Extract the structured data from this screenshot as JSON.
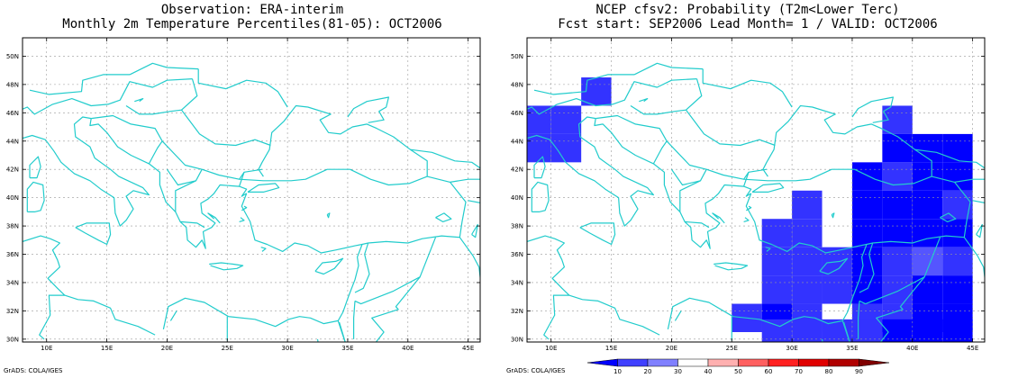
{
  "left_panel": {
    "title_line1": "Observation: ERA-interim",
    "title_line2": "Monthly 2m Temperature Percentiles(81-05): OCT2006"
  },
  "right_panel": {
    "title_line1": "NCEP cfsv2: Probability (T2m<Lower Terc)",
    "title_line2": "Fcst start: SEP2006  Lead Month= 1 / VALID: OCT2006"
  },
  "credit": "GrADS: COLA/IGES",
  "axes": {
    "lat_labels": [
      "30N",
      "32N",
      "34N",
      "36N",
      "38N",
      "40N",
      "42N",
      "44N",
      "46N",
      "48N",
      "50N"
    ],
    "lat_values": [
      30,
      32,
      34,
      36,
      38,
      40,
      42,
      44,
      46,
      48,
      50
    ],
    "lon_labels": [
      "10E",
      "15E",
      "20E",
      "25E",
      "30E",
      "35E",
      "40E",
      "45E"
    ],
    "lon_values": [
      10,
      15,
      20,
      25,
      30,
      35,
      40,
      45
    ],
    "lon_range": [
      8,
      46
    ],
    "lat_range": [
      29.8,
      51.3
    ]
  },
  "colorbar": {
    "labels": [
      "10",
      "20",
      "30",
      "40",
      "50",
      "60",
      "70",
      "80",
      "90"
    ],
    "colors": [
      "#0000ff",
      "#4040ff",
      "#8080ff",
      "#ffffff",
      "#ffb0b0",
      "#ff6060",
      "#ff2020",
      "#e00000",
      "#b00000",
      "#800000"
    ]
  },
  "colors": {
    "coast": "#22cccc",
    "grid": "#999999",
    "dark_blue": "#0000ff",
    "mid_blue": "#3333ff",
    "light_blue": "#5555ff"
  },
  "prob_cells": [
    {
      "lon": 13.75,
      "lat": 47.5,
      "level": "mid"
    },
    {
      "lon": 8.75,
      "lat": 45.5,
      "level": "mid"
    },
    {
      "lon": 11.25,
      "lat": 45.5,
      "level": "mid"
    },
    {
      "lon": 8.75,
      "lat": 43.5,
      "level": "mid"
    },
    {
      "lon": 11.25,
      "lat": 43.5,
      "level": "mid"
    },
    {
      "lon": 38.75,
      "lat": 45.5,
      "level": "mid"
    },
    {
      "lon": 38.75,
      "lat": 43.5,
      "level": "dark"
    },
    {
      "lon": 36.25,
      "lat": 41.5,
      "level": "dark"
    },
    {
      "lon": 38.75,
      "lat": 41.5,
      "level": "mid"
    },
    {
      "lon": 41.25,
      "lat": 41.5,
      "level": "dark"
    },
    {
      "lon": 43.75,
      "lat": 41.5,
      "level": "dark"
    },
    {
      "lon": 41.25,
      "lat": 43.5,
      "level": "dark"
    },
    {
      "lon": 43.75,
      "lat": 43.5,
      "level": "dark"
    },
    {
      "lon": 31.25,
      "lat": 39.5,
      "level": "mid"
    },
    {
      "lon": 36.25,
      "lat": 39.5,
      "level": "dark"
    },
    {
      "lon": 38.75,
      "lat": 39.5,
      "level": "dark"
    },
    {
      "lon": 41.25,
      "lat": 39.5,
      "level": "dark"
    },
    {
      "lon": 43.75,
      "lat": 39.5,
      "level": "mid"
    },
    {
      "lon": 28.75,
      "lat": 37.5,
      "level": "mid"
    },
    {
      "lon": 31.25,
      "lat": 37.5,
      "level": "mid"
    },
    {
      "lon": 36.25,
      "lat": 37.5,
      "level": "dark"
    },
    {
      "lon": 38.75,
      "lat": 37.5,
      "level": "dark"
    },
    {
      "lon": 41.25,
      "lat": 37.5,
      "level": "dark"
    },
    {
      "lon": 43.75,
      "lat": 37.5,
      "level": "dark"
    },
    {
      "lon": 28.75,
      "lat": 35.5,
      "level": "mid"
    },
    {
      "lon": 31.25,
      "lat": 35.5,
      "level": "mid"
    },
    {
      "lon": 33.75,
      "lat": 35.5,
      "level": "mid"
    },
    {
      "lon": 36.25,
      "lat": 35.5,
      "level": "dark"
    },
    {
      "lon": 38.75,
      "lat": 35.5,
      "level": "mid"
    },
    {
      "lon": 41.25,
      "lat": 35.5,
      "level": "light"
    },
    {
      "lon": 43.75,
      "lat": 35.5,
      "level": "mid"
    },
    {
      "lon": 28.75,
      "lat": 33.5,
      "level": "mid"
    },
    {
      "lon": 31.25,
      "lat": 33.5,
      "level": "mid"
    },
    {
      "lon": 33.75,
      "lat": 33.5,
      "level": "mid"
    },
    {
      "lon": 36.25,
      "lat": 33.5,
      "level": "dark"
    },
    {
      "lon": 38.75,
      "lat": 33.5,
      "level": "mid"
    },
    {
      "lon": 41.25,
      "lat": 33.5,
      "level": "dark"
    },
    {
      "lon": 43.75,
      "lat": 33.5,
      "level": "dark"
    },
    {
      "lon": 26.25,
      "lat": 31.5,
      "level": "mid"
    },
    {
      "lon": 28.75,
      "lat": 31.5,
      "level": "dark"
    },
    {
      "lon": 31.25,
      "lat": 31.5,
      "level": "mid"
    },
    {
      "lon": 36.25,
      "lat": 31.5,
      "level": "mid"
    },
    {
      "lon": 38.75,
      "lat": 31.5,
      "level": "mid"
    },
    {
      "lon": 41.25,
      "lat": 31.5,
      "level": "dark"
    },
    {
      "lon": 43.75,
      "lat": 31.5,
      "level": "dark"
    },
    {
      "lon": 28.75,
      "lat": 30.4,
      "level": "mid"
    },
    {
      "lon": 31.25,
      "lat": 30.4,
      "level": "mid"
    },
    {
      "lon": 33.75,
      "lat": 30.4,
      "level": "mid"
    },
    {
      "lon": 36.25,
      "lat": 30.4,
      "level": "mid"
    },
    {
      "lon": 38.75,
      "lat": 30.4,
      "level": "dark"
    },
    {
      "lon": 41.25,
      "lat": 30.4,
      "level": "dark"
    },
    {
      "lon": 43.75,
      "lat": 30.4,
      "level": "dark"
    }
  ]
}
